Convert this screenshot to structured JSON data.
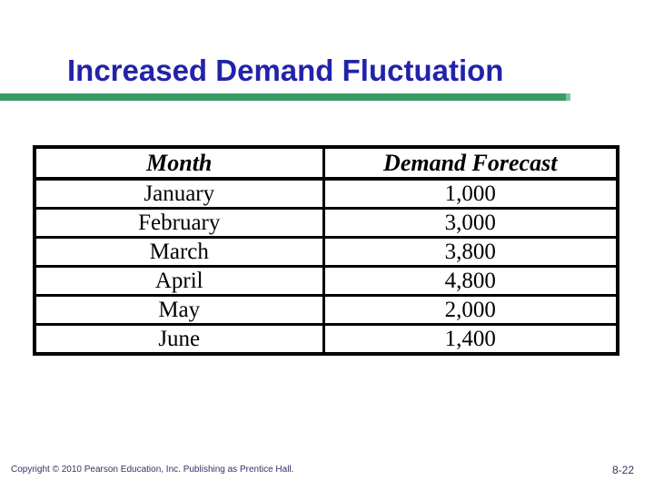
{
  "slide": {
    "title": "Increased Demand Fluctuation",
    "title_color": "#2222AA",
    "accent_bar_color": "#3B9A66",
    "background_color": "#FFFFFF"
  },
  "table": {
    "columns": [
      "Month",
      "Demand Forecast"
    ],
    "rows": [
      [
        "January",
        "1,000"
      ],
      [
        "February",
        "3,000"
      ],
      [
        "March",
        "3,800"
      ],
      [
        "April",
        "4,800"
      ],
      [
        "May",
        "2,000"
      ],
      [
        "June",
        "1,400"
      ]
    ],
    "border_color": "#000000"
  },
  "footer": {
    "copyright": "Copyright © 2010 Pearson Education, Inc. Publishing as Prentice Hall.",
    "page_number": "8-22",
    "text_color": "#333366"
  }
}
